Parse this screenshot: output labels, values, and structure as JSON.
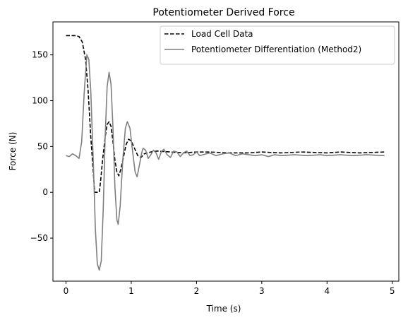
{
  "chart_data": {
    "type": "line",
    "title": "Potentiometer Derived Force",
    "xlabel": "Time (s)",
    "ylabel": "Force (N)",
    "xlim": [
      -0.2,
      5.1
    ],
    "ylim": [
      -97,
      186
    ],
    "xticks": [
      0,
      1,
      2,
      3,
      4,
      5
    ],
    "yticks": [
      -50,
      0,
      50,
      100,
      150
    ],
    "ytick_labels": [
      "−50",
      "0",
      "50",
      "100",
      "150"
    ],
    "grid": false,
    "legend_position": "top-right",
    "series": [
      {
        "name": "Load Cell Data",
        "color": "#000000",
        "style": "dashed",
        "points": [
          [
            0.0,
            171
          ],
          [
            0.1,
            171
          ],
          [
            0.15,
            171
          ],
          [
            0.2,
            170
          ],
          [
            0.25,
            164
          ],
          [
            0.3,
            145
          ],
          [
            0.34,
            110
          ],
          [
            0.38,
            60
          ],
          [
            0.42,
            20
          ],
          [
            0.44,
            0
          ],
          [
            0.48,
            0
          ],
          [
            0.51,
            0
          ],
          [
            0.53,
            12
          ],
          [
            0.56,
            35
          ],
          [
            0.6,
            60
          ],
          [
            0.63,
            74
          ],
          [
            0.66,
            77
          ],
          [
            0.69,
            72
          ],
          [
            0.72,
            55
          ],
          [
            0.75,
            35
          ],
          [
            0.78,
            22
          ],
          [
            0.81,
            18
          ],
          [
            0.84,
            25
          ],
          [
            0.88,
            38
          ],
          [
            0.92,
            52
          ],
          [
            0.96,
            58
          ],
          [
            1.0,
            56
          ],
          [
            1.05,
            48
          ],
          [
            1.1,
            40
          ],
          [
            1.15,
            38
          ],
          [
            1.2,
            42
          ],
          [
            1.3,
            44
          ],
          [
            1.4,
            45
          ],
          [
            1.6,
            44
          ],
          [
            1.8,
            43
          ],
          [
            2.0,
            44
          ],
          [
            2.2,
            44
          ],
          [
            2.5,
            43
          ],
          [
            2.8,
            43
          ],
          [
            3.0,
            44
          ],
          [
            3.3,
            43
          ],
          [
            3.6,
            44
          ],
          [
            4.0,
            43
          ],
          [
            4.2,
            44
          ],
          [
            4.5,
            43
          ],
          [
            4.88,
            44
          ]
        ]
      },
      {
        "name": "Potentiometer Differentiation (Method2)",
        "color": "#7f7f7f",
        "style": "solid",
        "points": [
          [
            0.0,
            40
          ],
          [
            0.05,
            39
          ],
          [
            0.1,
            42
          ],
          [
            0.15,
            40
          ],
          [
            0.2,
            37
          ],
          [
            0.24,
            55
          ],
          [
            0.28,
            110
          ],
          [
            0.32,
            150
          ],
          [
            0.35,
            145
          ],
          [
            0.38,
            110
          ],
          [
            0.42,
            30
          ],
          [
            0.45,
            -40
          ],
          [
            0.48,
            -78
          ],
          [
            0.51,
            -85
          ],
          [
            0.54,
            -75
          ],
          [
            0.57,
            -20
          ],
          [
            0.6,
            60
          ],
          [
            0.63,
            115
          ],
          [
            0.66,
            131
          ],
          [
            0.69,
            118
          ],
          [
            0.72,
            70
          ],
          [
            0.75,
            5
          ],
          [
            0.78,
            -30
          ],
          [
            0.8,
            -35
          ],
          [
            0.83,
            -15
          ],
          [
            0.87,
            35
          ],
          [
            0.91,
            70
          ],
          [
            0.94,
            77
          ],
          [
            0.98,
            70
          ],
          [
            1.02,
            45
          ],
          [
            1.06,
            22
          ],
          [
            1.09,
            17
          ],
          [
            1.12,
            28
          ],
          [
            1.16,
            43
          ],
          [
            1.18,
            48
          ],
          [
            1.22,
            46
          ],
          [
            1.26,
            37
          ],
          [
            1.3,
            41
          ],
          [
            1.34,
            46
          ],
          [
            1.38,
            43
          ],
          [
            1.42,
            36
          ],
          [
            1.46,
            44
          ],
          [
            1.5,
            47
          ],
          [
            1.55,
            41
          ],
          [
            1.6,
            38
          ],
          [
            1.65,
            45
          ],
          [
            1.7,
            44
          ],
          [
            1.75,
            39
          ],
          [
            1.8,
            43
          ],
          [
            1.85,
            45
          ],
          [
            1.9,
            40
          ],
          [
            1.95,
            41
          ],
          [
            2.0,
            44
          ],
          [
            2.05,
            40
          ],
          [
            2.1,
            41
          ],
          [
            2.2,
            43
          ],
          [
            2.3,
            40
          ],
          [
            2.4,
            42
          ],
          [
            2.5,
            43
          ],
          [
            2.6,
            40
          ],
          [
            2.7,
            42
          ],
          [
            2.8,
            41
          ],
          [
            2.9,
            40
          ],
          [
            3.0,
            41
          ],
          [
            3.1,
            39
          ],
          [
            3.2,
            41
          ],
          [
            3.3,
            40
          ],
          [
            3.5,
            41
          ],
          [
            3.7,
            40
          ],
          [
            3.9,
            41
          ],
          [
            4.0,
            40
          ],
          [
            4.2,
            41
          ],
          [
            4.4,
            40
          ],
          [
            4.6,
            41
          ],
          [
            4.88,
            40
          ]
        ]
      }
    ]
  }
}
